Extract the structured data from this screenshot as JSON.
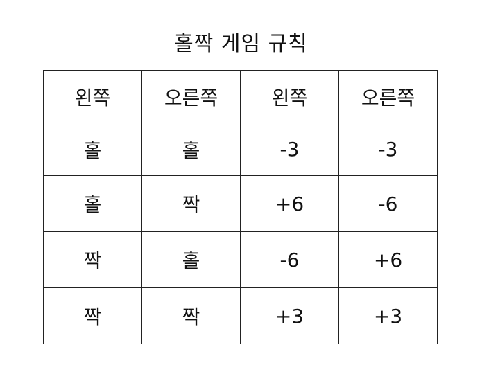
{
  "title": "홀짝 게임 규칙",
  "table": {
    "headers": [
      "왼쪽",
      "오른쪽",
      "왼쪽",
      "오른쪽"
    ],
    "rows": [
      [
        "홀",
        "홀",
        "-3",
        "-3"
      ],
      [
        "홀",
        "짝",
        "+6",
        "-6"
      ],
      [
        "짝",
        "홀",
        "-6",
        "+6"
      ],
      [
        "짝",
        "짝",
        "+3",
        "+3"
      ]
    ]
  }
}
